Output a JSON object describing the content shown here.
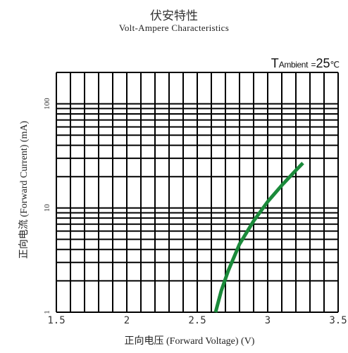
{
  "chart_data": {
    "type": "line",
    "title": "伏安特性",
    "subtitle": "Volt-Ampere Characteristics",
    "condition": {
      "symbol": "T",
      "subscript": "Ambient",
      "equals": "=",
      "value": "25",
      "unit": "℃"
    },
    "xlabel": "正向电压 (Forward Voltage) (V)",
    "ylabel": "正向电流 (Forward Current) (mA)",
    "x_scale": "linear",
    "y_scale": "log",
    "xlim": [
      1.5,
      3.5
    ],
    "ylim": [
      1,
      200
    ],
    "x_ticks": [
      1.5,
      2,
      2.5,
      3,
      3.5
    ],
    "x_tick_labels": [
      "1.5",
      "2",
      "2.5",
      "3",
      "3.5"
    ],
    "y_ticks": [
      1,
      10,
      100
    ],
    "y_tick_labels": [
      "1",
      "10",
      "100"
    ],
    "grid": true,
    "line_color": "#1a8a3a",
    "series": [
      {
        "x": [
          2.63,
          2.67,
          2.72,
          2.8,
          2.9,
          3.0,
          3.1,
          3.2,
          3.25
        ],
        "y": [
          1.0,
          1.6,
          2.5,
          4.5,
          7.5,
          11.5,
          16.5,
          23.0,
          27.0
        ]
      }
    ]
  }
}
